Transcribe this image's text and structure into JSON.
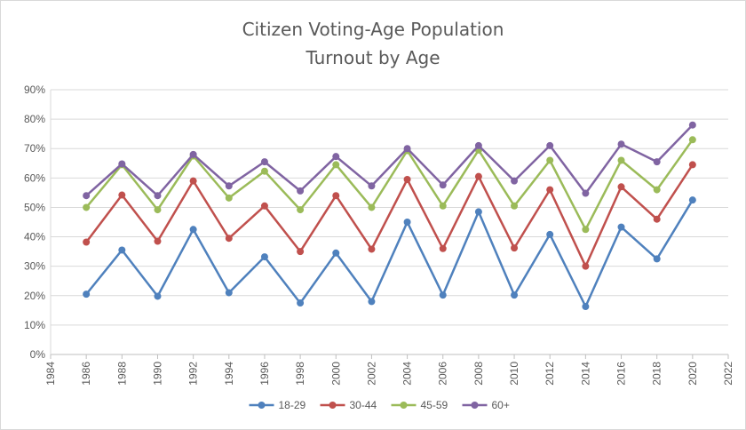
{
  "chart_data": {
    "type": "line",
    "title_lines": [
      "Citizen Voting-Age Population",
      "Turnout by Age"
    ],
    "xlabel": "",
    "ylabel": "",
    "x": [
      1986,
      1988,
      1990,
      1992,
      1994,
      1996,
      1998,
      2000,
      2002,
      2004,
      2006,
      2008,
      2010,
      2012,
      2014,
      2016,
      2018,
      2020
    ],
    "xlim": [
      1984,
      2022
    ],
    "xticks": [
      "1984",
      "1986",
      "1988",
      "1990",
      "1992",
      "1994",
      "1996",
      "1998",
      "2000",
      "2002",
      "2004",
      "2006",
      "2008",
      "2010",
      "2012",
      "2014",
      "2016",
      "2018",
      "2020",
      "2022"
    ],
    "ylim": [
      0,
      90
    ],
    "yticks": [
      "0%",
      "10%",
      "20%",
      "30%",
      "40%",
      "50%",
      "60%",
      "70%",
      "80%",
      "90%"
    ],
    "grid": "horizontal",
    "legend_position": "bottom",
    "series": [
      {
        "name": "18-29",
        "color": "#4f81bd",
        "values": [
          20.5,
          35.5,
          19.8,
          42.5,
          21.0,
          33.2,
          17.5,
          34.5,
          18.0,
          45.0,
          20.2,
          48.5,
          20.2,
          40.8,
          16.3,
          43.3,
          32.5,
          52.5
        ]
      },
      {
        "name": "30-44",
        "color": "#c0504d",
        "values": [
          38.2,
          54.2,
          38.5,
          59.0,
          39.5,
          50.5,
          35.0,
          54.0,
          35.8,
          59.5,
          36.0,
          60.5,
          36.2,
          56.0,
          30.0,
          57.0,
          46.0,
          64.5
        ]
      },
      {
        "name": "45-59",
        "color": "#9bbb59",
        "values": [
          50.0,
          64.5,
          49.2,
          67.5,
          53.2,
          62.3,
          49.2,
          64.5,
          50.0,
          69.3,
          50.5,
          69.5,
          50.5,
          66.0,
          42.5,
          66.0,
          56.0,
          73.0
        ]
      },
      {
        "name": "60+",
        "color": "#8064a2",
        "values": [
          54.0,
          64.8,
          54.0,
          68.0,
          57.3,
          65.5,
          55.6,
          67.3,
          57.3,
          70.0,
          57.6,
          71.0,
          59.0,
          71.0,
          54.8,
          71.5,
          65.5,
          78.0
        ]
      }
    ]
  }
}
